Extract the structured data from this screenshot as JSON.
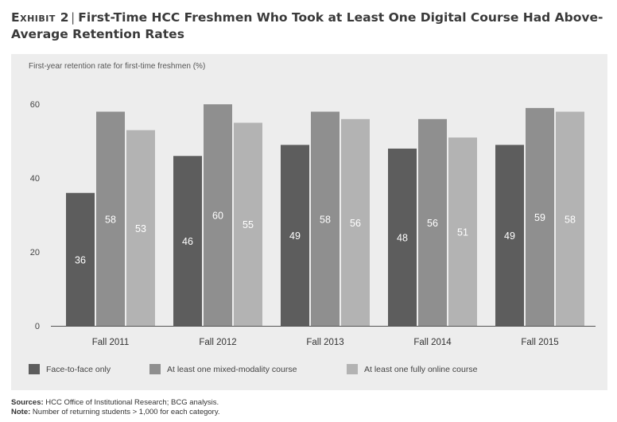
{
  "header": {
    "exhibit_label": "Exhibit 2",
    "exhibit_separator": "|",
    "title": "First-Time HCC Freshmen Who Took at Least One Digital Course Had Above-Average Retention Rates"
  },
  "chart_data": {
    "type": "bar",
    "title": "First-Time HCC Freshmen Who Took at Least One Digital Course Had Above-Average Retention Rates",
    "ylabel": "First-year retention rate for first-time freshmen (%)",
    "xlabel": "",
    "categories": [
      "Fall 2011",
      "Fall 2012",
      "Fall 2013",
      "Fall 2014",
      "Fall 2015"
    ],
    "series": [
      {
        "name": "Face-to-face only",
        "values": [
          36,
          46,
          49,
          48,
          49
        ],
        "color": "#5d5d5d"
      },
      {
        "name": "At least one mixed-modality course",
        "values": [
          58,
          60,
          58,
          56,
          59
        ],
        "color": "#8f8f8f"
      },
      {
        "name": "At least one fully online course",
        "values": [
          53,
          55,
          56,
          51,
          58
        ],
        "color": "#b3b3b3"
      }
    ],
    "ylim": [
      0,
      65
    ],
    "yticks": [
      0,
      20,
      40,
      60
    ],
    "grid": false,
    "legend": "bottom",
    "data_labels": true,
    "background": "#ededed"
  },
  "footer": {
    "sources_label": "Sources:",
    "sources_text": "HCC Office of Institutional Research; BCG analysis.",
    "note_label": "Note:",
    "note_text": "Number of returning students > 1,000 for each category."
  }
}
